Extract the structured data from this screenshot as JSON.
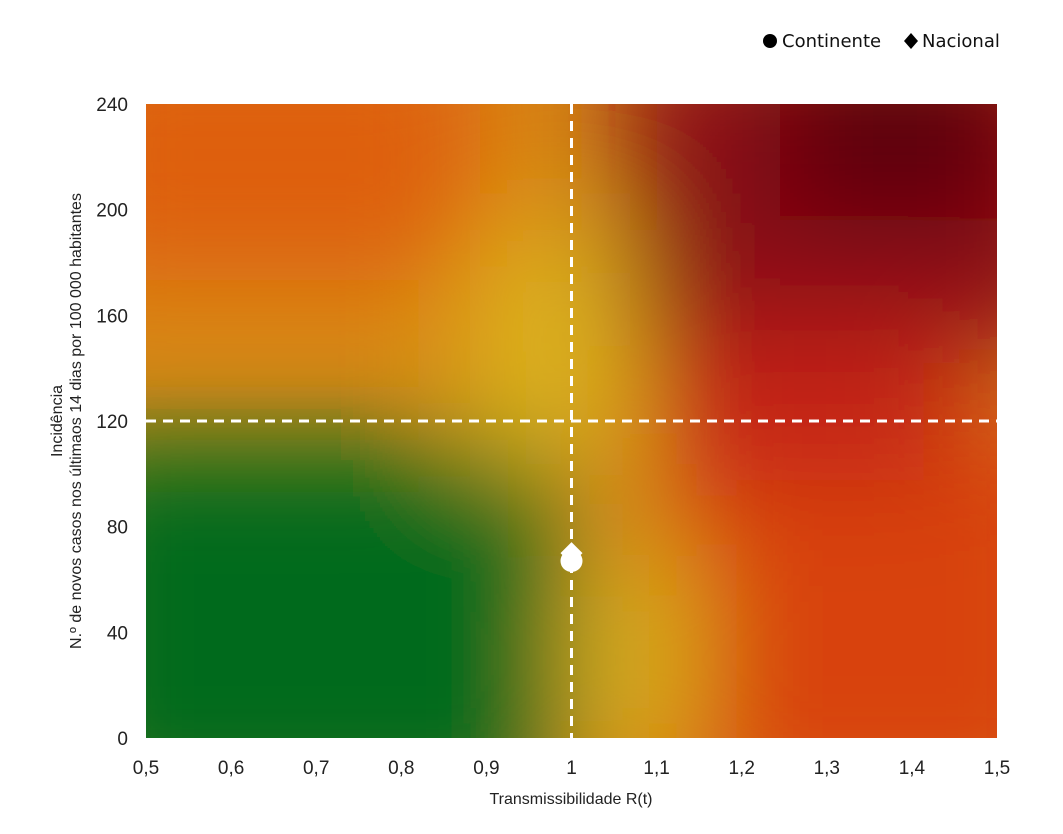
{
  "chart_data": {
    "type": "scatter",
    "title": "",
    "xlabel": "Transmissibilidade R(t)",
    "ylabel_lines": [
      "Incidência",
      "N.º de novos casos nos últimaos 14 dias por 100 000 habitantes"
    ],
    "xlim": [
      0.5,
      1.5
    ],
    "ylim": [
      0,
      240
    ],
    "x_ticks": [
      0.5,
      0.6,
      0.7,
      0.8,
      0.9,
      1,
      1.1,
      1.2,
      1.3,
      1.4,
      1.5
    ],
    "x_tick_labels": [
      "0,5",
      "0,6",
      "0,7",
      "0,8",
      "0,9",
      "1",
      "1,1",
      "1,2",
      "1,3",
      "1,4",
      "1,5"
    ],
    "y_ticks": [
      0,
      40,
      80,
      120,
      160,
      200,
      240
    ],
    "y_tick_labels": [
      "0",
      "40",
      "80",
      "120",
      "160",
      "200",
      "240"
    ],
    "thresholds": {
      "x": 1,
      "y": 120
    },
    "grid": false,
    "legend_position": "top-right",
    "series": [
      {
        "name": "Continente",
        "marker": "circle",
        "x": [
          1.0
        ],
        "y": [
          67
        ]
      },
      {
        "name": "Nacional",
        "marker": "diamond",
        "x": [
          1.0
        ],
        "y": [
          70
        ]
      }
    ],
    "background": "risk-matrix-gradient",
    "colors": {
      "green": "#006b1f",
      "yellow": "#d9b21a",
      "orange": "#e06010",
      "red": "#b81414",
      "dark_red": "#5c0010",
      "threshold_line": "#ffffff",
      "marker": "#ffffff",
      "legend_marker": "#000000"
    }
  }
}
